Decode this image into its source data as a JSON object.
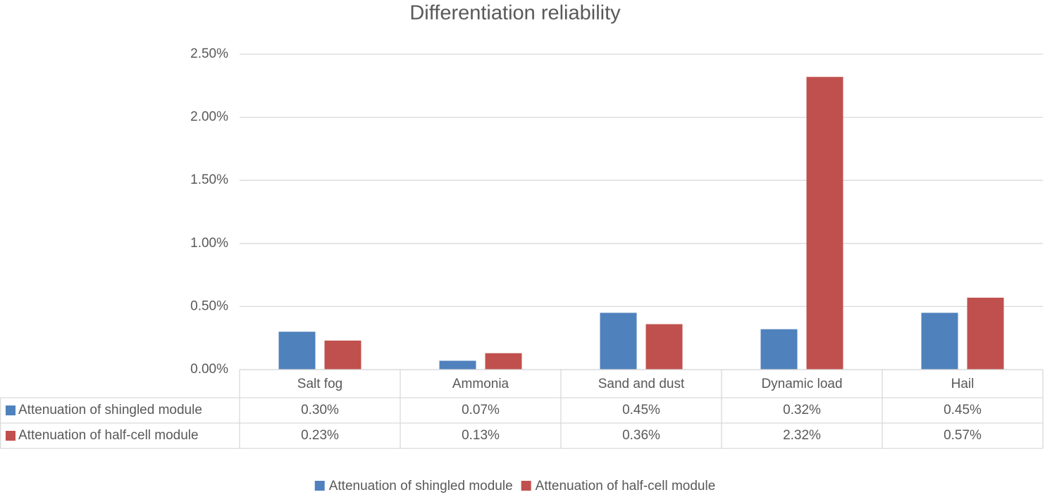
{
  "chart_data": {
    "type": "bar",
    "title": "Differentiation reliability",
    "categories": [
      "Salt fog",
      "Ammonia",
      "Sand and dust",
      "Dynamic load",
      "Hail"
    ],
    "series": [
      {
        "name": "Attenuation of shingled module",
        "color": "#4f81bd",
        "values": [
          0.3,
          0.07,
          0.45,
          0.32,
          0.45
        ],
        "value_labels": [
          "0.30%",
          "0.07%",
          "0.45%",
          "0.32%",
          "0.45%"
        ]
      },
      {
        "name": "Attenuation of half-cell module",
        "color": "#c0504d",
        "values": [
          0.23,
          0.13,
          0.36,
          2.32,
          0.57
        ],
        "value_labels": [
          "0.23%",
          "0.13%",
          "0.36%",
          "2.32%",
          "0.57%"
        ]
      }
    ],
    "ylim": [
      0,
      2.5
    ],
    "yticks": [
      {
        "value": 0,
        "label": "0.00%"
      },
      {
        "value": 0.5,
        "label": "0.50%"
      },
      {
        "value": 1,
        "label": "1.00%"
      },
      {
        "value": 1.5,
        "label": "1.50%"
      },
      {
        "value": 2,
        "label": "2.00%"
      },
      {
        "value": 2.5,
        "label": "2.50%"
      }
    ],
    "grid": true,
    "legend": "bottom",
    "data_table": true
  }
}
